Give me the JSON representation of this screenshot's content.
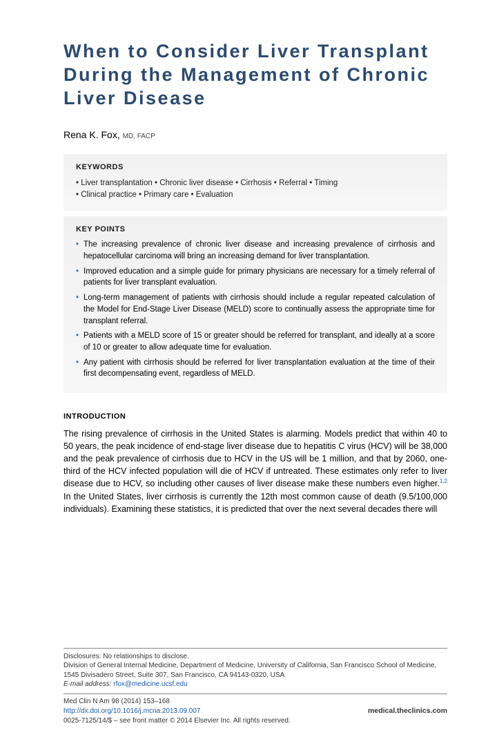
{
  "title": "When to Consider Liver Transplant During the Management of Chronic Liver Disease",
  "author": {
    "name": "Rena K. Fox,",
    "credentials": "MD, FACP"
  },
  "keywords": {
    "heading": "KEYWORDS",
    "line1": "• Liver transplantation • Chronic liver disease • Cirrhosis • Referral • Timing",
    "line2": "• Clinical practice • Primary care • Evaluation"
  },
  "keypoints": {
    "heading": "KEY POINTS",
    "items": [
      "The increasing prevalence of chronic liver disease and increasing prevalence of cirrhosis and hepatocellular carcinoma will bring an increasing demand for liver transplantation.",
      "Improved education and a simple guide for primary physicians are necessary for a timely referral of patients for liver transplant evaluation.",
      "Long-term management of patients with cirrhosis should include a regular repeated calculation of the Model for End-Stage Liver Disease (MELD) score to continually assess the appropriate time for transplant referral.",
      "Patients with a MELD score of 15 or greater should be referred for transplant, and ideally at a score of 10 or greater to allow adequate time for evaluation.",
      "Any patient with cirrhosis should be referred for liver transplantation evaluation at the time of their first decompensating event, regardless of MELD."
    ]
  },
  "intro": {
    "heading": "INTRODUCTION",
    "text_a": "The rising prevalence of cirrhosis in the United States is alarming. Models predict that within 40 to 50 years, the peak incidence of end-stage liver disease due to hepatitis C virus (HCV) will be 38,000 and the peak prevalence of cirrhosis due to HCV in the US will be 1 million, and that by 2060, one-third of the HCV infected population will die of HCV if untreated. These estimates only refer to liver disease due to HCV, so including other causes of liver disease make these numbers even higher.",
    "cite": "1,2",
    "text_b": " In the United States, liver cirrhosis is currently the 12th most common cause of death (9.5/100,000 individuals). Examining these statistics, it is predicted that over the next several decades there will"
  },
  "footer": {
    "disclosures": "Disclosures: No relationships to disclose.",
    "affiliation": "Division of General Internal Medicine, Department of Medicine, University of California, San Francisco School of Medicine, 1545 Divisadero Street, Suite 307, San Francisco, CA 94143-0320, USA",
    "email_label": "E-mail address:",
    "email": "rfox@medicine.ucsf.edu",
    "journal": "Med Clin N Am 98 (2014) 153–168",
    "doi": "http://dx.doi.org/10.1016/j.mcna.2013.09.007",
    "site": "medical.theclinics.com",
    "copyright": "0025-7125/14/$ – see front matter © 2014 Elsevier Inc. All rights reserved."
  }
}
